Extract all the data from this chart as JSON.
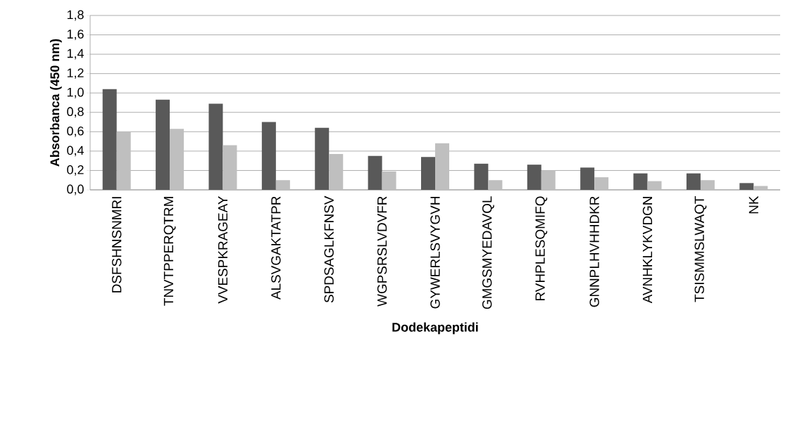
{
  "chart_data": {
    "type": "bar",
    "xlabel": "Dodekapeptidi",
    "ylabel": "Absorbanca  (450 nm)",
    "categories": [
      "DSFSHNSNMRI",
      "TNVTPPERQTRM",
      "VVESPKRAGEAY",
      "ALSVGAKTATPR",
      "SPDSAGLKFNSV",
      "WGPSRSLVDVFR",
      "GYWERLSVYGVH",
      "GMGSMYEDAVQL",
      "RVHPLESQMIFQ",
      "GNNPLHVHHDKR",
      "AVNHKLYKVDGN",
      "TSISMMSLWAQT",
      "NK"
    ],
    "series": [
      {
        "color": "#595959",
        "values": [
          1.04,
          0.93,
          0.89,
          0.7,
          0.64,
          0.35,
          0.34,
          0.27,
          0.26,
          0.23,
          0.17,
          0.17,
          0.07
        ]
      },
      {
        "color": "#bfbfbf",
        "values": [
          0.6,
          0.63,
          0.46,
          0.1,
          0.37,
          0.19,
          0.48,
          0.1,
          0.2,
          0.13,
          0.09,
          0.1,
          0.04
        ]
      }
    ],
    "ylim": [
      0,
      1.8
    ],
    "yticks": [
      {
        "value": 0,
        "label": "0,0"
      },
      {
        "value": 0.2,
        "label": "0,2"
      },
      {
        "value": 0.4,
        "label": "0,4"
      },
      {
        "value": 0.6,
        "label": "0,6"
      },
      {
        "value": 0.8,
        "label": "0,8"
      },
      {
        "value": 1.0,
        "label": "1,0"
      },
      {
        "value": 1.2,
        "label": "1,2"
      },
      {
        "value": 1.4,
        "label": "1,4"
      },
      {
        "value": 1.6,
        "label": "1,6"
      },
      {
        "value": 1.8,
        "label": "1,8"
      }
    ],
    "grid": "y"
  }
}
